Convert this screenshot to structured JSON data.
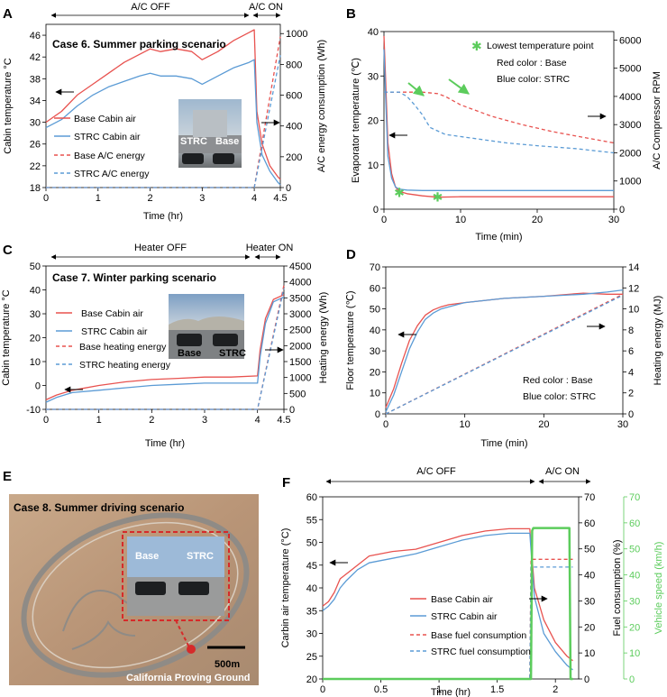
{
  "colors": {
    "base": "#e8524f",
    "strc": "#5b9bd5",
    "speed": "#5ccc5c",
    "star": "#5ccc5c",
    "arrow_green": "#5ccc5c"
  },
  "panels": {
    "A": {
      "label": "A",
      "case_title": "Case 6. Summer parking  scenario",
      "span_labels": [
        "A/C OFF",
        "A/C ON"
      ],
      "photo_labels": [
        "STRC",
        "Base"
      ],
      "legend": [
        "Base Cabin air",
        "STRC Cabin air",
        "Base A/C energy",
        "STRC A/C energy"
      ],
      "chart_data": {
        "type": "line",
        "xlabel": "Time (hr)",
        "ylabel": "Cabin temperature °C",
        "y2label": "A/C energy consumption (Wh)",
        "xticks": [
          "0",
          "1",
          "2",
          "3",
          "4",
          "4.5"
        ],
        "yticks": [
          "18",
          "22",
          "26",
          "30",
          "34",
          "38",
          "42",
          "46"
        ],
        "y2ticks": [
          "0",
          "200",
          "400",
          "600",
          "800",
          "1000"
        ],
        "xlim": [
          0,
          4.5
        ],
        "ylim": [
          18,
          48
        ],
        "y2lim": [
          0,
          1060
        ],
        "series": [
          {
            "name": "Base Cabin air",
            "axis": "left",
            "style": "solid",
            "x": [
              0,
              0.3,
              0.6,
              0.9,
              1.2,
              1.5,
              1.8,
              2.0,
              2.2,
              2.5,
              2.8,
              3.0,
              3.3,
              3.6,
              3.9,
              4.0,
              4.05,
              4.15,
              4.3,
              4.45,
              4.5
            ],
            "y": [
              30,
              32,
              35,
              37,
              39,
              41,
              42.5,
              43.5,
              43,
              43.5,
              43,
              41.5,
              43,
              45,
              46.5,
              47,
              32,
              26,
              22,
              20,
              19.5
            ]
          },
          {
            "name": "STRC Cabin air",
            "axis": "left",
            "style": "solid",
            "x": [
              0,
              0.3,
              0.6,
              0.9,
              1.2,
              1.5,
              1.8,
              2.0,
              2.2,
              2.5,
              2.8,
              3.0,
              3.3,
              3.6,
              3.9,
              4.0,
              4.05,
              4.15,
              4.3,
              4.45,
              4.5
            ],
            "y": [
              29,
              30.5,
              33,
              35,
              36.5,
              37.5,
              38.5,
              39,
              38.5,
              38.5,
              38,
              37,
              38.5,
              40,
              41,
              41.5,
              30,
              24,
              21,
              19,
              18.5
            ]
          },
          {
            "name": "Base A/C energy",
            "axis": "right",
            "style": "dashed",
            "x": [
              0,
              4.0,
              4.5
            ],
            "y": [
              0,
              0,
              980
            ]
          },
          {
            "name": "STRC A/C energy",
            "axis": "right",
            "style": "dashed",
            "x": [
              0,
              4.0,
              4.5
            ],
            "y": [
              0,
              0,
              860
            ]
          }
        ]
      }
    },
    "B": {
      "label": "B",
      "legend_star": "Lowest temperature point",
      "note1": "Red color : Base",
      "note2": "Blue color: STRC",
      "chart_data": {
        "type": "line",
        "xlabel": "Time (min)",
        "ylabel": "Evaporator temperature (℃)",
        "y2label": "A/C Compressor RPM",
        "xticks": [
          "0",
          "10",
          "20",
          "30"
        ],
        "yticks": [
          "0",
          "10",
          "20",
          "30",
          "40"
        ],
        "y2ticks": [
          "0",
          "1000",
          "2000",
          "3000",
          "4000",
          "5000",
          "6000"
        ],
        "xlim": [
          0,
          30
        ],
        "ylim": [
          0,
          40
        ],
        "y2lim": [
          0,
          6300
        ],
        "series": [
          {
            "name": "Base evaporator",
            "axis": "left",
            "style": "solid",
            "x": [
              0,
              0.2,
              0.5,
              1,
              1.5,
              2,
              3,
              5,
              7,
              10,
              20,
              30
            ],
            "y": [
              39,
              30,
              15,
              8,
              5,
              4,
              3.5,
              3,
              2.7,
              2.8,
              2.8,
              2.8
            ]
          },
          {
            "name": "STRC evaporator",
            "axis": "left",
            "style": "solid",
            "x": [
              0,
              0.2,
              0.5,
              1,
              1.5,
              2,
              3,
              5,
              10,
              20,
              30
            ],
            "y": [
              36,
              26,
              12,
              7,
              5,
              4.5,
              4.3,
              4.2,
              4.2,
              4.2,
              4.2
            ]
          },
          {
            "name": "Base compressor",
            "axis": "right",
            "style": "dashed",
            "x": [
              0,
              2,
              5,
              7,
              8,
              10,
              14,
              18,
              22,
              26,
              30
            ],
            "y": [
              4150,
              4150,
              4150,
              4100,
              4000,
              3700,
              3300,
              3000,
              2750,
              2550,
              2350
            ]
          },
          {
            "name": "STRC compressor",
            "axis": "right",
            "style": "dashed",
            "x": [
              0,
              2,
              3,
              4,
              5,
              6,
              8,
              12,
              16,
              20,
              25,
              30
            ],
            "y": [
              4150,
              4150,
              4000,
              3700,
              3350,
              2900,
              2650,
              2500,
              2350,
              2250,
              2150,
              2000
            ]
          }
        ],
        "markers": [
          {
            "x": 2,
            "y": 3.8
          },
          {
            "x": 7,
            "y": 2.7
          }
        ]
      }
    },
    "C": {
      "label": "C",
      "case_title": "Case 7. Winter parking scenario",
      "span_labels": [
        "Heater OFF",
        "Heater ON"
      ],
      "photo_labels": [
        "Base",
        "STRC"
      ],
      "legend": [
        "Base Cabin air",
        "STRC Cabin air",
        "Base heating energy",
        "STRC heating energy"
      ],
      "chart_data": {
        "type": "line",
        "xlabel": "Time (hr)",
        "ylabel": "Cabin temperature °C",
        "y2label": "Heating energy (Wh)",
        "xticks": [
          "0",
          "1",
          "2",
          "3",
          "4",
          "4.5"
        ],
        "yticks": [
          "-10",
          "0",
          "10",
          "20",
          "30",
          "40",
          "50"
        ],
        "y2ticks": [
          "0",
          "500",
          "1000",
          "1500",
          "2000",
          "2500",
          "3000",
          "3500",
          "4000",
          "4500"
        ],
        "xlim": [
          0,
          4.5
        ],
        "ylim": [
          -10,
          50
        ],
        "y2lim": [
          0,
          4500
        ],
        "series": [
          {
            "name": "Base Cabin air",
            "axis": "left",
            "style": "solid",
            "x": [
              0,
              0.2,
              0.5,
              1,
              1.5,
              2,
              2.5,
              3,
              3.5,
              4.0,
              4.05,
              4.15,
              4.3,
              4.5
            ],
            "y": [
              -6,
              -4,
              -2,
              0,
              1.5,
              2.5,
              3,
              3.5,
              3.5,
              4,
              15,
              28,
              36,
              38
            ]
          },
          {
            "name": "STRC Cabin air",
            "axis": "left",
            "style": "solid",
            "x": [
              0,
              0.2,
              0.5,
              1,
              1.5,
              2,
              2.5,
              3,
              3.5,
              4.0,
              4.05,
              4.15,
              4.3,
              4.5
            ],
            "y": [
              -7,
              -5,
              -3,
              -2,
              -1,
              0,
              0.5,
              1,
              1,
              1,
              12,
              26,
              35,
              37
            ]
          },
          {
            "name": "Base heating energy",
            "axis": "right",
            "style": "dashed",
            "x": [
              0,
              4.0,
              4.5
            ],
            "y": [
              0,
              0,
              3900
            ]
          },
          {
            "name": "STRC heating energy",
            "axis": "right",
            "style": "dashed",
            "x": [
              0,
              4.0,
              4.5
            ],
            "y": [
              0,
              0,
              3800
            ]
          }
        ]
      }
    },
    "D": {
      "label": "D",
      "note1": "Red color : Base",
      "note2": "Blue color: STRC",
      "chart_data": {
        "type": "line",
        "xlabel": "Time (min)",
        "ylabel": "Floor temperature (℃)",
        "y2label": "Heating energy (MJ)",
        "xticks": [
          "0",
          "10",
          "20",
          "30"
        ],
        "yticks": [
          "0",
          "10",
          "20",
          "30",
          "40",
          "50",
          "60",
          "70"
        ],
        "y2ticks": [
          "0",
          "2",
          "4",
          "6",
          "8",
          "10",
          "12",
          "14"
        ],
        "xlim": [
          0,
          30
        ],
        "ylim": [
          0,
          70
        ],
        "y2lim": [
          0,
          14
        ],
        "series": [
          {
            "name": "Base floor",
            "axis": "left",
            "style": "solid",
            "x": [
              0,
              1,
              2,
              3,
              4,
              5,
              6,
              7,
              8,
              10,
              15,
              20,
              25,
              28,
              30
            ],
            "y": [
              3,
              12,
              24,
              35,
              42,
              47,
              49.5,
              51,
              52,
              53,
              55,
              56,
              57.5,
              57,
              57
            ]
          },
          {
            "name": "STRC floor",
            "axis": "left",
            "style": "solid",
            "x": [
              0,
              1,
              2,
              3,
              4,
              5,
              6,
              7,
              8,
              10,
              15,
              20,
              25,
              28,
              30
            ],
            "y": [
              1,
              9,
              20,
              31,
              39,
              45,
              48,
              50,
              51,
              53,
              55,
              56,
              57,
              58,
              59
            ]
          },
          {
            "name": "Base heating energy",
            "axis": "right",
            "style": "dashed",
            "x": [
              0,
              30
            ],
            "y": [
              0,
              11.4
            ]
          },
          {
            "name": "STRC heating energy",
            "axis": "right",
            "style": "dashed",
            "x": [
              0,
              30
            ],
            "y": [
              0,
              11.3
            ]
          }
        ]
      }
    },
    "E": {
      "label": "E",
      "case_title": "Case 8. Summer driving scenario",
      "photo_labels": [
        "Base",
        "STRC"
      ],
      "scale": "500m",
      "location": "California Proving Ground"
    },
    "F": {
      "label": "F",
      "span_labels": [
        "A/C OFF",
        "A/C ON"
      ],
      "legend": [
        "Base Cabin air",
        "STRC Cabin air",
        "Base fuel consumption",
        "STRC fuel consumption"
      ],
      "chart_data": {
        "type": "line",
        "xlabel": "Time (hr)",
        "ylabel": "Carbin air temperature (°C)",
        "y2label": "Fuel consumption (%)",
        "y3label": "Vehicle speed (km/h)",
        "xticks": [
          "0",
          "0.5",
          "1",
          "1.5",
          "2"
        ],
        "yticks": [
          "20",
          "25",
          "30",
          "35",
          "40",
          "45",
          "50",
          "55",
          "60"
        ],
        "y2ticks": [
          "0",
          "10",
          "20",
          "30",
          "40",
          "50",
          "60",
          "70"
        ],
        "y3ticks": [
          "0",
          "10",
          "20",
          "30",
          "40",
          "50",
          "60",
          "70"
        ],
        "xlim": [
          0,
          2.2
        ],
        "ylim": [
          20,
          60
        ],
        "y2lim": [
          0,
          70
        ],
        "y3lim": [
          0,
          70
        ],
        "series": [
          {
            "name": "Base Cabin air",
            "axis": "left",
            "style": "solid",
            "x": [
              0,
              0.05,
              0.1,
              0.15,
              0.2,
              0.3,
              0.4,
              0.6,
              0.8,
              1.0,
              1.2,
              1.4,
              1.6,
              1.78,
              1.82,
              1.9,
              2.0,
              2.1,
              2.15
            ],
            "y": [
              36,
              37,
              39,
              42,
              43,
              45,
              47,
              48,
              48.5,
              50,
              51.5,
              52.5,
              53,
              53,
              40,
              33,
              28,
              25,
              24
            ]
          },
          {
            "name": "STRC Cabin air",
            "axis": "left",
            "style": "solid",
            "x": [
              0,
              0.05,
              0.1,
              0.15,
              0.2,
              0.3,
              0.4,
              0.6,
              0.8,
              1.0,
              1.2,
              1.4,
              1.6,
              1.78,
              1.82,
              1.9,
              2.0,
              2.1,
              2.15
            ],
            "y": [
              35,
              36,
              37.5,
              40,
              41.5,
              44,
              45.5,
              46.5,
              47.5,
              49,
              50.5,
              51.5,
              52,
              52,
              38,
              30,
              26,
              23,
              22
            ]
          },
          {
            "name": "Base fuel consumption",
            "axis": "right",
            "style": "dashed",
            "x": [
              0,
              1.78,
              1.79,
              2.15
            ],
            "y": [
              0,
              0,
              46,
              46
            ]
          },
          {
            "name": "STRC fuel consumption",
            "axis": "right",
            "style": "dashed",
            "x": [
              0,
              1.78,
              1.79,
              2.15
            ],
            "y": [
              0,
              0,
              43,
              43
            ]
          },
          {
            "name": "Vehicle speed",
            "axis": "right2",
            "style": "solid",
            "x": [
              0,
              1.79,
              1.8,
              1.81,
              2.12,
              2.13,
              2.15
            ],
            "y": [
              0,
              0,
              57,
              58,
              58,
              0,
              0
            ]
          }
        ]
      }
    }
  }
}
